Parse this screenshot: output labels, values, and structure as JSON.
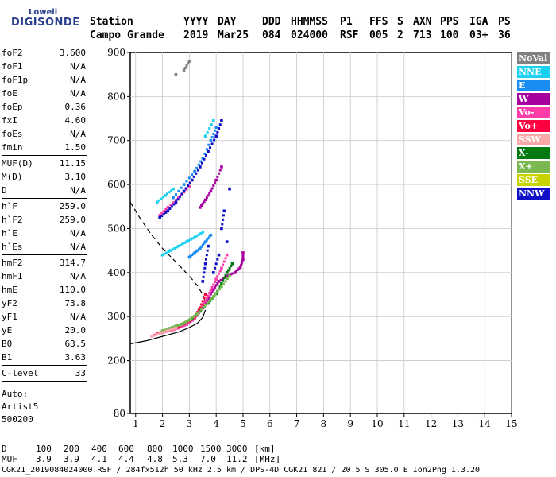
{
  "logo": {
    "brand": "Lowell",
    "name": "DIGISONDE"
  },
  "header": {
    "labels": [
      "Station",
      "YYYY",
      "DAY",
      "DDD",
      "HHMMSS",
      "P1",
      "FFS",
      "S",
      "AXN",
      "PPS",
      "IGA",
      "PS"
    ],
    "values": [
      "Campo Grande",
      "2019",
      "Mar25",
      "084",
      "024000",
      "RSF",
      "005",
      "2",
      "713",
      "100",
      "03+",
      "36"
    ]
  },
  "params": {
    "group1": [
      {
        "k": "foF2",
        "v": "3.600"
      },
      {
        "k": "foF1",
        "v": "N/A"
      },
      {
        "k": "foF1p",
        "v": "N/A"
      },
      {
        "k": "foE",
        "v": "N/A"
      },
      {
        "k": "foEp",
        "v": "0.36"
      },
      {
        "k": "fxI",
        "v": "4.60"
      },
      {
        "k": "foEs",
        "v": "N/A"
      },
      {
        "k": "fmin",
        "v": "1.50"
      }
    ],
    "group2": [
      {
        "k": "MUF(D)",
        "v": "11.15"
      },
      {
        "k": "M(D)",
        "v": "3.10"
      },
      {
        "k": "D",
        "v": "N/A"
      }
    ],
    "group3": [
      {
        "k": "h`F",
        "v": "259.0"
      },
      {
        "k": "h`F2",
        "v": "259.0"
      },
      {
        "k": "h`E",
        "v": "N/A"
      },
      {
        "k": "h`Es",
        "v": "N/A"
      }
    ],
    "group4": [
      {
        "k": "hmF2",
        "v": "314.7"
      },
      {
        "k": "hmF1",
        "v": "N/A"
      },
      {
        "k": "hmE",
        "v": "110.0"
      },
      {
        "k": "yF2",
        "v": "73.8"
      },
      {
        "k": "yF1",
        "v": "N/A"
      },
      {
        "k": "yE",
        "v": "20.0"
      },
      {
        "k": "B0",
        "v": "63.5"
      },
      {
        "k": "B1",
        "v": "3.63"
      }
    ],
    "group5": [
      {
        "k": "C-level",
        "v": "33"
      }
    ],
    "auto": [
      "Auto:",
      "Artist5",
      "500200"
    ]
  },
  "legend": [
    {
      "label": "NoVal",
      "color": "#808080"
    },
    {
      "label": "NNE",
      "color": "#1ad1f2"
    },
    {
      "label": "E",
      "color": "#1a8cf2"
    },
    {
      "label": "W",
      "color": "#a8009e"
    },
    {
      "label": "Vo-",
      "color": "#ff3ca8"
    },
    {
      "label": "Vo+",
      "color": "#ff0040"
    },
    {
      "label": "SSW",
      "color": "#f8a8a8"
    },
    {
      "label": "X-",
      "color": "#007a10"
    },
    {
      "label": "X+",
      "color": "#7ab850"
    },
    {
      "label": "SSE",
      "color": "#c8d400"
    },
    {
      "label": "NNW",
      "color": "#1010c8"
    }
  ],
  "bottom": {
    "d_label": "D",
    "d_values": [
      "100",
      "200",
      "400",
      "600",
      "800",
      "1000",
      "1500",
      "3000"
    ],
    "d_unit": "[km]",
    "muf_label": "MUF",
    "muf_values": [
      "3.9",
      "3.9",
      "4.1",
      "4.4",
      "4.8",
      "5.3",
      "7.0",
      "11.2"
    ],
    "muf_unit": "[MHz]",
    "footer": "CGK21_2019084024000.RSF / 284fx512h 50 kHz 2.5 km / DPS-4D CGK21 821 / 20.5 S 305.0 E Ion2Png 1.3.20"
  },
  "chart_data": {
    "type": "scatter",
    "xlim": [
      0.8,
      15
    ],
    "ylim": [
      80,
      900
    ],
    "x_ticks": [
      1,
      2,
      3,
      4,
      5,
      6,
      7,
      8,
      9,
      10,
      11,
      12,
      13,
      14,
      15
    ],
    "y_ticks": [
      80,
      200,
      300,
      400,
      500,
      600,
      700,
      800,
      900
    ],
    "grid": true,
    "profile_dashed": [
      [
        0.8,
        560
      ],
      [
        1.2,
        520
      ],
      [
        1.6,
        485
      ],
      [
        2.0,
        455
      ],
      [
        2.4,
        430
      ],
      [
        2.8,
        405
      ],
      [
        3.1,
        385
      ],
      [
        3.3,
        370
      ],
      [
        3.5,
        350
      ],
      [
        3.6,
        335
      ]
    ],
    "profile_solid": [
      [
        0.8,
        238
      ],
      [
        1.4,
        245
      ],
      [
        2.0,
        255
      ],
      [
        2.6,
        265
      ],
      [
        3.0,
        275
      ],
      [
        3.3,
        285
      ],
      [
        3.5,
        298
      ],
      [
        3.6,
        315
      ]
    ],
    "traces": [
      {
        "name": "W",
        "color": "#a8009e",
        "points": [
          [
            1.8,
            262
          ],
          [
            2.0,
            265
          ],
          [
            2.3,
            270
          ],
          [
            2.6,
            276
          ],
          [
            2.9,
            284
          ],
          [
            3.1,
            292
          ],
          [
            3.3,
            304
          ],
          [
            3.5,
            320
          ],
          [
            3.7,
            340
          ],
          [
            3.9,
            362
          ],
          [
            4.1,
            380
          ],
          [
            4.4,
            392
          ],
          [
            4.7,
            400
          ],
          [
            4.9,
            412
          ],
          [
            5.0,
            430
          ],
          [
            5.0,
            445
          ],
          [
            3.4,
            548
          ],
          [
            3.6,
            565
          ],
          [
            3.8,
            585
          ],
          [
            4.0,
            610
          ],
          [
            4.2,
            640
          ]
        ]
      },
      {
        "name": "Vo-",
        "color": "#ff3ca8",
        "points": [
          [
            1.7,
            258
          ],
          [
            2.0,
            264
          ],
          [
            2.3,
            268
          ],
          [
            2.6,
            274
          ],
          [
            2.9,
            282
          ],
          [
            3.2,
            296
          ],
          [
            3.4,
            315
          ],
          [
            3.6,
            335
          ],
          [
            3.8,
            360
          ],
          [
            4.0,
            385
          ],
          [
            4.2,
            410
          ],
          [
            4.4,
            440
          ],
          [
            1.9,
            530
          ],
          [
            2.2,
            548
          ],
          [
            2.6,
            570
          ],
          [
            3.0,
            595
          ]
        ]
      },
      {
        "name": "Vo+",
        "color": "#ff0040",
        "points": [
          [
            1.8,
            262
          ],
          [
            2.2,
            268
          ],
          [
            2.6,
            278
          ],
          [
            3.0,
            290
          ],
          [
            3.2,
            300
          ],
          [
            3.4,
            320
          ],
          [
            3.6,
            350
          ]
        ]
      },
      {
        "name": "X-",
        "color": "#007a10",
        "points": [
          [
            2.2,
            272
          ],
          [
            2.5,
            278
          ],
          [
            2.8,
            285
          ],
          [
            3.1,
            296
          ],
          [
            3.4,
            312
          ],
          [
            3.7,
            330
          ],
          [
            4.0,
            352
          ],
          [
            4.2,
            375
          ],
          [
            4.4,
            400
          ],
          [
            4.6,
            420
          ],
          [
            1.9,
            262
          ],
          [
            2.1,
            268
          ]
        ]
      },
      {
        "name": "X+",
        "color": "#7ab850",
        "points": [
          [
            2.0,
            268
          ],
          [
            2.4,
            276
          ],
          [
            2.7,
            282
          ],
          [
            3.0,
            292
          ],
          [
            3.3,
            306
          ],
          [
            3.6,
            326
          ],
          [
            3.9,
            345
          ],
          [
            4.2,
            368
          ],
          [
            4.5,
            392
          ]
        ]
      },
      {
        "name": "E",
        "color": "#1a8cf2",
        "points": [
          [
            3.0,
            435
          ],
          [
            3.2,
            445
          ],
          [
            3.4,
            455
          ],
          [
            3.6,
            470
          ],
          [
            3.8,
            485
          ],
          [
            2.4,
            570
          ],
          [
            2.8,
            600
          ],
          [
            3.2,
            630
          ],
          [
            3.5,
            660
          ],
          [
            3.8,
            700
          ],
          [
            4.0,
            730
          ]
        ]
      },
      {
        "name": "NNE",
        "color": "#1ad1f2",
        "points": [
          [
            2.0,
            440
          ],
          [
            2.3,
            450
          ],
          [
            2.6,
            460
          ],
          [
            2.9,
            470
          ],
          [
            3.2,
            480
          ],
          [
            3.5,
            492
          ],
          [
            1.8,
            560
          ],
          [
            2.1,
            575
          ],
          [
            2.4,
            590
          ],
          [
            3.6,
            710
          ],
          [
            3.9,
            745
          ]
        ]
      },
      {
        "name": "NNW",
        "color": "#1010c8",
        "points": [
          [
            1.9,
            525
          ],
          [
            2.2,
            540
          ],
          [
            2.5,
            560
          ],
          [
            2.8,
            585
          ],
          [
            3.1,
            610
          ],
          [
            3.4,
            640
          ],
          [
            3.7,
            675
          ],
          [
            4.0,
            710
          ],
          [
            4.2,
            745
          ],
          [
            3.5,
            380
          ],
          [
            3.6,
            420
          ],
          [
            3.7,
            460
          ],
          [
            3.9,
            400
          ],
          [
            4.1,
            440
          ],
          [
            4.2,
            500
          ],
          [
            4.3,
            540
          ],
          [
            4.4,
            470
          ],
          [
            4.5,
            590
          ]
        ]
      },
      {
        "name": "SSW",
        "color": "#f8a8a8",
        "points": [
          [
            1.6,
            255
          ],
          [
            1.9,
            262
          ],
          [
            2.2,
            268
          ],
          [
            2.5,
            274
          ]
        ]
      },
      {
        "name": "NoVal",
        "color": "#808080",
        "points": [
          [
            2.8,
            860
          ],
          [
            3.0,
            880
          ],
          [
            2.5,
            850
          ]
        ]
      }
    ]
  }
}
